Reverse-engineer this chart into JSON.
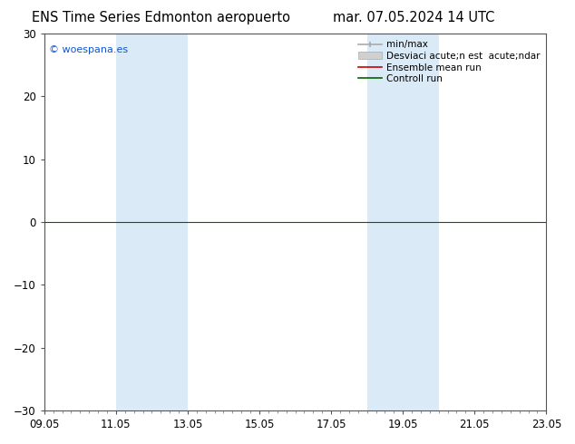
{
  "title_left": "ENS Time Series Edmonton aeropuerto",
  "title_right": "mar. 07.05.2024 14 UTC",
  "watermark": "© woespana.es",
  "ylim": [
    -30,
    30
  ],
  "yticks": [
    -30,
    -20,
    -10,
    0,
    10,
    20,
    30
  ],
  "xtick_labels": [
    "09.05",
    "11.05",
    "13.05",
    "15.05",
    "17.05",
    "19.05",
    "21.05",
    "23.05"
  ],
  "xtick_positions": [
    0,
    2,
    4,
    6,
    8,
    10,
    12,
    14
  ],
  "shade_bands": [
    {
      "xmin": 2,
      "xmax": 4,
      "color": "#daeaf6",
      "alpha": 1.0
    },
    {
      "xmin": 9,
      "xmax": 11,
      "color": "#daeaf6",
      "alpha": 1.0
    }
  ],
  "hline_y": 0,
  "hline_color": "#006400",
  "background_color": "#ffffff",
  "title_fontsize": 10.5,
  "tick_fontsize": 8.5,
  "watermark_color": "#1155cc",
  "legend_labels": [
    "min/max",
    "Desviaci acute;n est  acute;ndar",
    "Ensemble mean run",
    "Controll run"
  ],
  "legend_line_colors": [
    "#aaaaaa",
    "#cccccc",
    "#cc0000",
    "#006400"
  ],
  "xmin": 0,
  "xmax": 14
}
